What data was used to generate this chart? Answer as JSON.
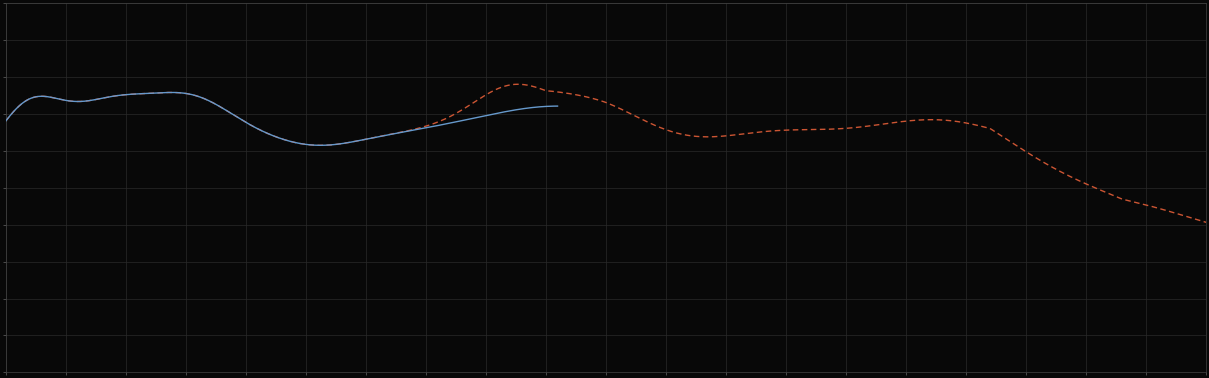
{
  "background_color": "#080808",
  "plot_bg_color": "#080808",
  "grid_color": "#2a2a2a",
  "line1_color": "#6699cc",
  "line2_color": "#cc5533",
  "line_width": 1.0,
  "figsize": [
    12.09,
    3.78
  ],
  "dpi": 100,
  "xlim": [
    0,
    100
  ],
  "ylim": [
    0,
    10
  ],
  "xticks_major": 5,
  "yticks_major": 1,
  "spine_color": "#444444"
}
